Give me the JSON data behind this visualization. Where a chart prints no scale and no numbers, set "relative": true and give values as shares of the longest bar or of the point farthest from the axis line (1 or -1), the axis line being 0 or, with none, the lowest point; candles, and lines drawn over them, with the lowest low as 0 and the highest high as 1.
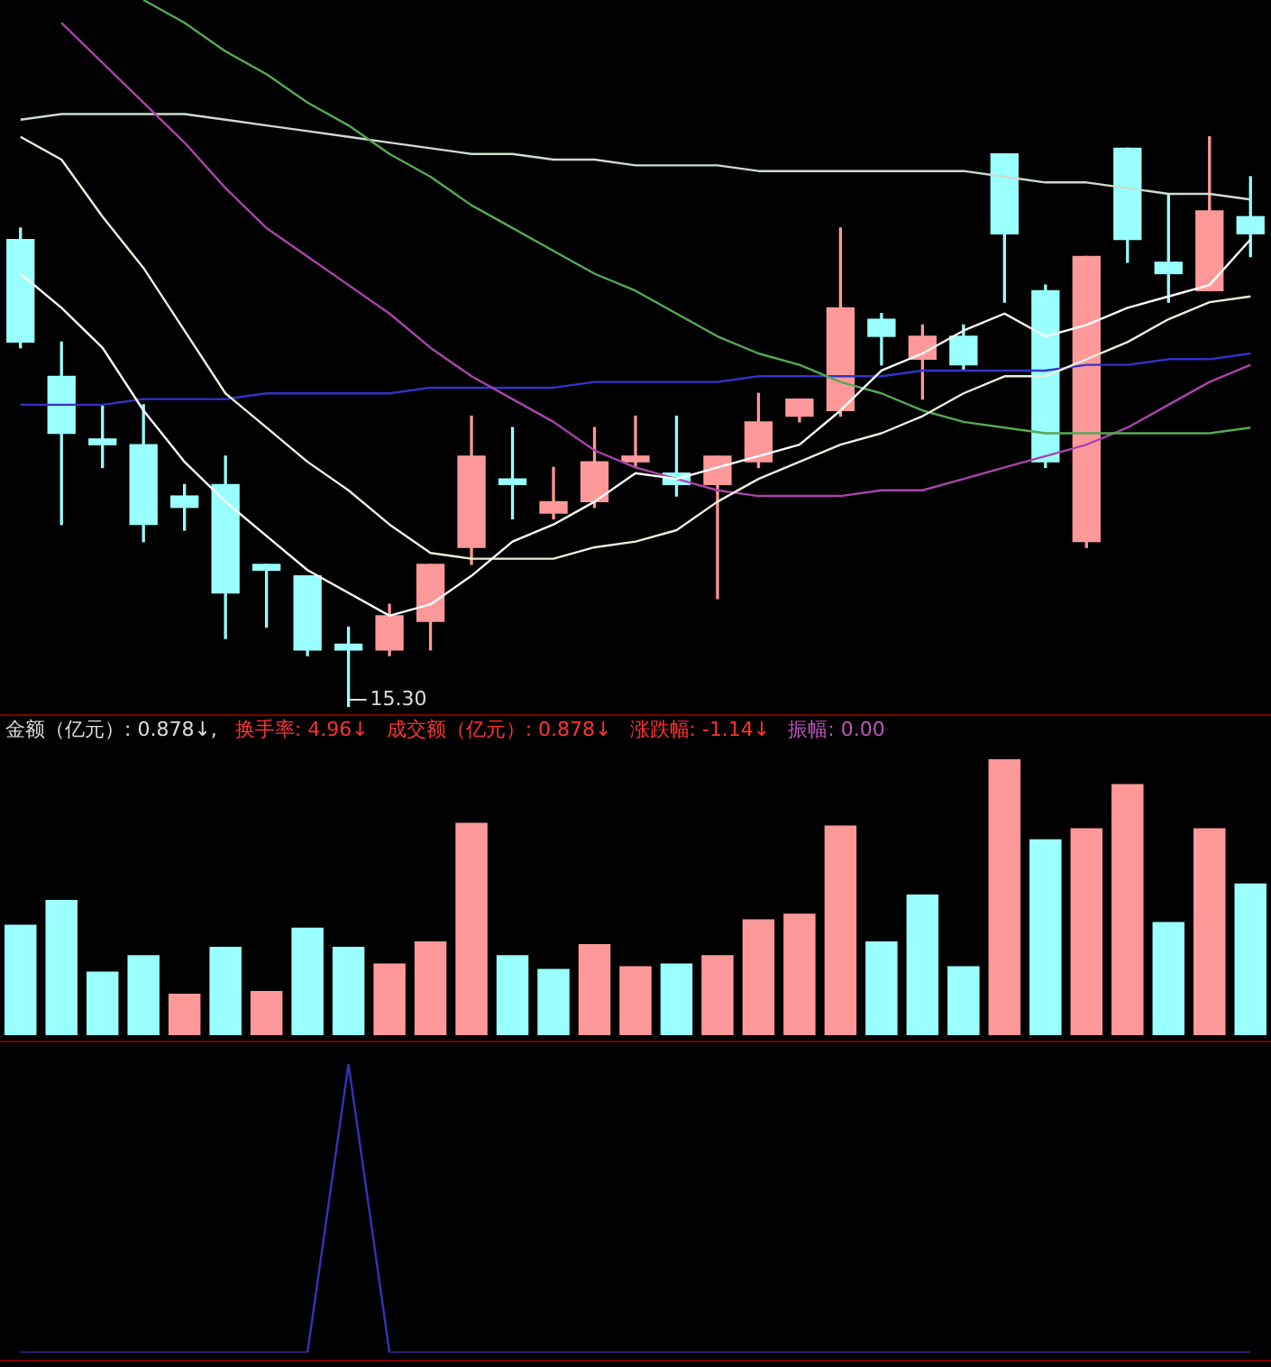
{
  "chart_data": [
    {
      "type": "candlestick",
      "relative": true,
      "categories": [
        null,
        null,
        null,
        null,
        null,
        null,
        null,
        null,
        null,
        null,
        null,
        null,
        null,
        null,
        null,
        null,
        null,
        null,
        null,
        null,
        null,
        null,
        null,
        null,
        null,
        null,
        null,
        null,
        null,
        null,
        null
      ],
      "ohlc": [
        [
          0.82,
          0.84,
          0.63,
          0.64
        ],
        [
          0.58,
          0.64,
          0.32,
          0.48
        ],
        [
          0.47,
          0.53,
          0.42,
          0.46
        ],
        [
          0.46,
          0.53,
          0.29,
          0.32
        ],
        [
          0.37,
          0.39,
          0.31,
          0.35
        ],
        [
          0.39,
          0.44,
          0.12,
          0.2
        ],
        [
          0.25,
          0.25,
          0.14,
          0.24
        ],
        [
          0.23,
          0.23,
          0.09,
          0.1
        ],
        [
          0.11,
          0.14,
          0,
          0.1
        ],
        [
          0.1,
          0.18,
          0.09,
          0.16
        ],
        [
          0.15,
          0.25,
          0.1,
          0.25
        ],
        [
          0.28,
          0.51,
          0.25,
          0.44
        ],
        [
          0.4,
          0.49,
          0.33,
          0.39
        ],
        [
          0.34,
          0.42,
          0.33,
          0.36
        ],
        [
          0.36,
          0.49,
          0.35,
          0.43
        ],
        [
          0.43,
          0.51,
          0.42,
          0.44
        ],
        [
          0.41,
          0.51,
          0.37,
          0.39
        ],
        [
          0.39,
          0.44,
          0.19,
          0.44
        ],
        [
          0.43,
          0.55,
          0.42,
          0.5
        ],
        [
          0.51,
          0.54,
          0.5,
          0.54
        ],
        [
          0.52,
          0.84,
          0.51,
          0.7
        ],
        [
          0.68,
          0.69,
          0.6,
          0.65
        ],
        [
          0.61,
          0.67,
          0.54,
          0.65
        ],
        [
          0.65,
          0.67,
          0.59,
          0.6
        ],
        [
          0.97,
          0.97,
          0.71,
          0.83
        ],
        [
          0.73,
          0.74,
          0.42,
          0.43
        ],
        [
          0.29,
          0.79,
          0.28,
          0.79
        ],
        [
          0.98,
          0.98,
          0.78,
          0.82
        ],
        [
          0.78,
          0.9,
          0.71,
          0.76
        ],
        [
          0.73,
          1,
          0.73,
          0.87
        ],
        [
          0.86,
          0.93,
          0.79,
          0.83
        ]
      ],
      "colors": [
        "#99ffff",
        "#99ffff",
        "#99ffff",
        "#99ffff",
        "#99ffff",
        "#99ffff",
        "#99ffff",
        "#99ffff",
        "#99ffff",
        "#ff9999",
        "#ff9999",
        "#ff9999",
        "#99ffff",
        "#ff9999",
        "#ff9999",
        "#ff9999",
        "#99ffff",
        "#ff9999",
        "#ff9999",
        "#ff9999",
        "#ff9999",
        "#99ffff",
        "#ff9999",
        "#99ffff",
        "#99ffff",
        "#99ffff",
        "#ff9999",
        "#99ffff",
        "#99ffff",
        "#ff9999",
        "#99ffff"
      ],
      "series": [
        {
          "type": "line",
          "color": "#ffffff",
          "values": [
            0.76,
            0.7,
            0.63,
            0.52,
            0.43,
            0.36,
            0.3,
            0.24,
            0.2,
            0.16,
            0.18,
            0.23,
            0.29,
            0.32,
            0.36,
            0.41,
            0.4,
            0.42,
            0.44,
            0.46,
            0.52,
            0.59,
            0.62,
            0.66,
            0.69,
            0.65,
            0.67,
            0.7,
            0.72,
            0.74,
            0.82
          ]
        },
        {
          "type": "line",
          "color": "#eeeedd",
          "values": [
            1.0,
            0.96,
            0.86,
            0.77,
            0.66,
            0.55,
            0.49,
            0.43,
            0.38,
            0.32,
            0.27,
            0.26,
            0.26,
            0.26,
            0.28,
            0.29,
            0.31,
            0.36,
            0.4,
            0.43,
            0.46,
            0.48,
            0.51,
            0.55,
            0.58,
            0.58,
            0.61,
            0.64,
            0.68,
            0.71,
            0.72
          ]
        },
        {
          "type": "line",
          "color": "#55aa55",
          "values": [
            null,
            null,
            null,
            1.24,
            1.2,
            1.15,
            1.11,
            1.06,
            1.02,
            0.97,
            0.93,
            0.88,
            0.84,
            0.8,
            0.76,
            0.73,
            0.69,
            0.65,
            0.62,
            0.6,
            0.57,
            0.55,
            0.52,
            0.5,
            0.49,
            0.48,
            0.48,
            0.48,
            0.48,
            0.48,
            0.49
          ]
        },
        {
          "type": "line",
          "color": "#aa44aa",
          "values": [
            null,
            1.2,
            1.13,
            1.06,
            0.99,
            0.91,
            0.84,
            0.79,
            0.74,
            0.69,
            0.63,
            0.58,
            0.54,
            0.5,
            0.45,
            0.42,
            0.4,
            0.38,
            0.37,
            0.37,
            0.37,
            0.38,
            0.38,
            0.4,
            0.42,
            0.44,
            0.46,
            0.49,
            0.53,
            0.57,
            0.6
          ]
        },
        {
          "type": "line",
          "color": "#3333cc",
          "values": [
            0.53,
            0.53,
            0.53,
            0.54,
            0.54,
            0.54,
            0.55,
            0.55,
            0.55,
            0.55,
            0.56,
            0.56,
            0.56,
            0.56,
            0.57,
            0.57,
            0.57,
            0.57,
            0.58,
            0.58,
            0.58,
            0.58,
            0.59,
            0.59,
            0.59,
            0.59,
            0.6,
            0.6,
            0.61,
            0.61,
            0.62
          ]
        },
        {
          "type": "line",
          "color": "#ccddcc",
          "values": [
            1.03,
            1.04,
            1.04,
            1.04,
            1.04,
            1.03,
            1.02,
            1.01,
            1.0,
            0.99,
            0.98,
            0.97,
            0.97,
            0.96,
            0.96,
            0.95,
            0.95,
            0.95,
            0.94,
            0.94,
            0.94,
            0.94,
            0.94,
            0.94,
            0.93,
            0.92,
            0.92,
            0.91,
            0.9,
            0.9,
            0.89
          ]
        }
      ],
      "annotations": [
        "15.30"
      ]
    },
    {
      "type": "bar",
      "relative": true,
      "categories": [
        null,
        null,
        null,
        null,
        null,
        null,
        null,
        null,
        null,
        null,
        null,
        null,
        null,
        null,
        null,
        null,
        null,
        null,
        null,
        null,
        null,
        null,
        null,
        null,
        null,
        null,
        null,
        null,
        null,
        null,
        null
      ],
      "values": [
        0.4,
        0.49,
        0.23,
        0.29,
        0.15,
        0.32,
        0.16,
        0.39,
        0.32,
        0.26,
        0.34,
        0.77,
        0.29,
        0.24,
        0.33,
        0.25,
        0.26,
        0.29,
        0.42,
        0.44,
        0.76,
        0.34,
        0.51,
        0.25,
        1,
        0.71,
        0.75,
        0.91,
        0.41,
        0.75,
        0.55
      ],
      "colors": [
        "#99ffff",
        "#99ffff",
        "#99ffff",
        "#99ffff",
        "#ff9999",
        "#99ffff",
        "#ff9999",
        "#99ffff",
        "#99ffff",
        "#ff9999",
        "#ff9999",
        "#ff9999",
        "#99ffff",
        "#99ffff",
        "#ff9999",
        "#ff9999",
        "#99ffff",
        "#ff9999",
        "#ff9999",
        "#ff9999",
        "#ff9999",
        "#99ffff",
        "#99ffff",
        "#99ffff",
        "#ff9999",
        "#99ffff",
        "#ff9999",
        "#ff9999",
        "#99ffff",
        "#ff9999",
        "#99ffff"
      ],
      "annotations": [
        "金额（亿元）: 0.878↓,",
        "换手率: 4.96↓",
        "成交额（亿元）: 0.878↓",
        "涨跌幅: -1.14↓",
        "振幅: 0.00"
      ]
    },
    {
      "type": "line",
      "relative": true,
      "color": "#3333bb",
      "categories": [
        null,
        null,
        null,
        null,
        null,
        null,
        null,
        null,
        null,
        null,
        null,
        null,
        null,
        null,
        null,
        null,
        null,
        null,
        null,
        null,
        null,
        null,
        null,
        null,
        null,
        null,
        null,
        null,
        null,
        null,
        null
      ],
      "values": [
        0,
        0,
        0,
        0,
        0,
        0,
        0,
        0,
        1,
        0,
        0,
        0,
        0,
        0,
        0,
        0,
        0,
        0,
        0,
        0,
        0,
        0,
        0,
        0,
        0,
        0,
        0,
        0,
        0,
        0,
        0
      ]
    }
  ]
}
